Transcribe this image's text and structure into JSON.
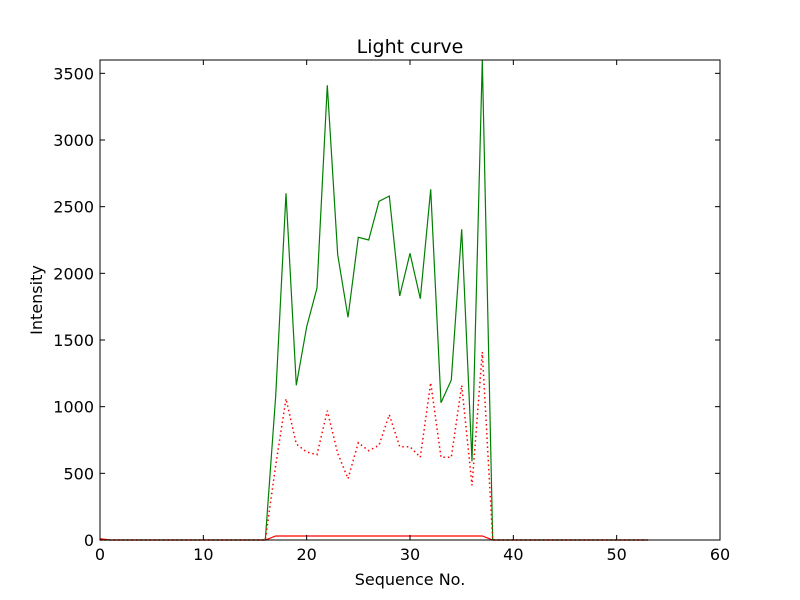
{
  "chart_data": {
    "type": "line",
    "title": "Light curve",
    "xlabel": "Sequence No.",
    "ylabel": "Intensity",
    "xlim": [
      0,
      60
    ],
    "ylim": [
      0,
      3600
    ],
    "xticks": [
      0,
      10,
      20,
      30,
      40,
      50,
      60
    ],
    "yticks": [
      0,
      500,
      1000,
      1500,
      2000,
      2500,
      3000,
      3500
    ],
    "grid": false,
    "legend": "none",
    "series": [
      {
        "color": "#008000",
        "style": "solid",
        "x": [
          0,
          1,
          2,
          3,
          4,
          5,
          6,
          7,
          8,
          9,
          10,
          11,
          12,
          13,
          14,
          15,
          16,
          17,
          18,
          19,
          20,
          21,
          22,
          23,
          24,
          25,
          26,
          27,
          28,
          29,
          30,
          31,
          32,
          33,
          34,
          35,
          36,
          37,
          38,
          39,
          40,
          41,
          42,
          43,
          44,
          45,
          46,
          47,
          48,
          49,
          50,
          51,
          52,
          53
        ],
        "values": [
          0,
          0,
          0,
          0,
          0,
          0,
          0,
          0,
          0,
          0,
          0,
          0,
          0,
          0,
          0,
          0,
          0,
          1080,
          2600,
          1160,
          1600,
          1890,
          3410,
          2140,
          1670,
          2270,
          2250,
          2540,
          2580,
          1830,
          2150,
          1810,
          2630,
          1030,
          1200,
          2330,
          590,
          3600,
          0,
          0,
          0,
          0,
          0,
          0,
          0,
          0,
          0,
          0,
          0,
          0,
          0,
          0,
          0,
          0
        ]
      },
      {
        "color": "#ff0000",
        "style": "dotted",
        "x": [
          0,
          1,
          2,
          3,
          4,
          5,
          6,
          7,
          8,
          9,
          10,
          11,
          12,
          13,
          14,
          15,
          16,
          17,
          18,
          19,
          20,
          21,
          22,
          23,
          24,
          25,
          26,
          27,
          28,
          29,
          30,
          31,
          32,
          33,
          34,
          35,
          36,
          37,
          38,
          39,
          40,
          41,
          42,
          43,
          44,
          45,
          46,
          47,
          48,
          49,
          50,
          51,
          52,
          53
        ],
        "values": [
          0,
          0,
          0,
          0,
          0,
          0,
          0,
          0,
          0,
          0,
          0,
          0,
          0,
          0,
          0,
          0,
          0,
          560,
          1060,
          720,
          660,
          640,
          970,
          650,
          460,
          730,
          670,
          710,
          940,
          700,
          700,
          620,
          1180,
          620,
          620,
          1160,
          410,
          1410,
          0,
          0,
          0,
          0,
          0,
          0,
          0,
          0,
          0,
          0,
          0,
          0,
          0,
          0,
          0,
          0
        ]
      },
      {
        "color": "#ff0000",
        "style": "solid",
        "x": [
          0,
          1,
          2,
          3,
          4,
          5,
          6,
          7,
          8,
          9,
          10,
          11,
          12,
          13,
          14,
          15,
          16,
          17,
          18,
          19,
          20,
          21,
          22,
          23,
          24,
          25,
          26,
          27,
          28,
          29,
          30,
          31,
          32,
          33,
          34,
          35,
          36,
          37,
          38,
          39,
          40,
          41,
          42,
          43,
          44,
          45,
          46,
          47,
          48,
          49,
          50,
          51,
          52,
          53
        ],
        "values": [
          10,
          0,
          0,
          0,
          0,
          0,
          0,
          0,
          0,
          0,
          0,
          0,
          0,
          0,
          0,
          0,
          0,
          30,
          30,
          30,
          30,
          30,
          30,
          30,
          30,
          30,
          30,
          30,
          30,
          30,
          30,
          30,
          30,
          30,
          30,
          30,
          30,
          30,
          0,
          0,
          0,
          0,
          0,
          0,
          0,
          0,
          0,
          0,
          0,
          0,
          0,
          0,
          0,
          0
        ]
      }
    ]
  }
}
